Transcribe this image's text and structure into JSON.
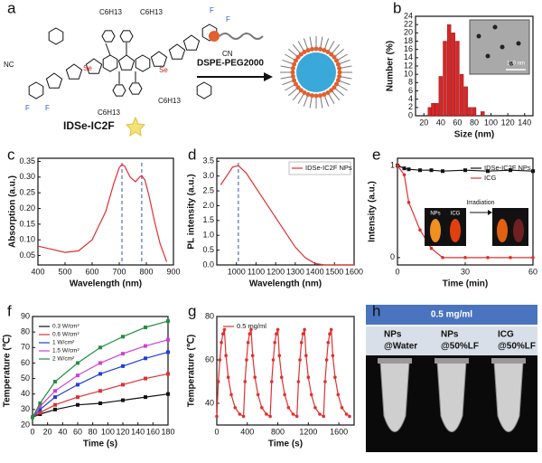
{
  "panel_labels": [
    "a",
    "b",
    "c",
    "d",
    "e",
    "f",
    "g",
    "h"
  ],
  "panel_a": {
    "molecule": "IDSe-IC2F",
    "reagent": "DSPE-PEG2000",
    "hexyl": "C6H13",
    "selenium": "Se",
    "fluorine": "F",
    "cyano": "CN",
    "cyano_left": "NC"
  },
  "panel_h": {
    "header": "0.5 mg/ml",
    "columns": [
      [
        "NPs",
        "@Water"
      ],
      [
        "NPs",
        "@50%LF"
      ],
      [
        "ICG",
        "@50%LF"
      ]
    ]
  },
  "chart_data": [
    {
      "type": "bar",
      "x_label": "Size (nm)",
      "y_label": "Number (%)",
      "x": [
        27,
        31,
        35,
        40,
        45,
        50,
        55,
        60,
        65,
        70,
        75,
        80,
        90
      ],
      "values": [
        2,
        3,
        3,
        9.5,
        18,
        22,
        20,
        18,
        10,
        7,
        2,
        2,
        1
      ],
      "color": "#d62728",
      "xlim": [
        10,
        150
      ],
      "ylim": [
        0,
        24
      ],
      "xticks": [
        20,
        40,
        60,
        80,
        100,
        120,
        140
      ],
      "yticks": [
        0,
        2,
        4,
        6,
        8,
        10,
        12,
        14,
        16,
        18,
        20,
        22,
        24
      ],
      "inset": {
        "scale_bar": "100 nm"
      }
    },
    {
      "type": "line",
      "x_label": "Wavelength (nm)",
      "y_label": "Absorption (a.u.)",
      "x": [
        400,
        450,
        500,
        550,
        600,
        650,
        680,
        700,
        710,
        720,
        740,
        760,
        775,
        783,
        795,
        810,
        830,
        850,
        875
      ],
      "series": [
        {
          "color": "#e03030",
          "values": [
            0.08,
            0.07,
            0.06,
            0.065,
            0.1,
            0.19,
            0.28,
            0.33,
            0.34,
            0.335,
            0.3,
            0.285,
            0.3,
            0.305,
            0.29,
            0.24,
            0.16,
            0.09,
            0.03
          ]
        }
      ],
      "reference_lines": [
        710,
        783
      ],
      "reference_color": "#3050c0",
      "xlim": [
        400,
        900
      ],
      "ylim": [
        0.02,
        0.36
      ],
      "xticks": [
        400,
        500,
        600,
        700,
        800,
        900
      ],
      "yticks": [
        {
          "value": 0.05,
          "label": "0.05"
        },
        {
          "value": 0.1,
          "label": "0.10"
        },
        {
          "value": 0.15,
          "label": "0.15"
        },
        {
          "value": 0.2,
          "label": "0.20"
        },
        {
          "value": 0.25,
          "label": "0.25"
        },
        {
          "value": 0.3,
          "label": "0.30"
        },
        {
          "value": 0.35,
          "label": "0.35"
        }
      ]
    },
    {
      "type": "line",
      "x_label": "Wavelength (nm)",
      "y_label": "PL intensity (a.u.)",
      "x": [
        920,
        950,
        980,
        1010,
        1050,
        1100,
        1150,
        1200,
        1250,
        1300,
        1350,
        1400,
        1450,
        1500,
        1600
      ],
      "series": [
        {
          "name": "IDSe-IC2F NPs",
          "color": "#e03030",
          "values": [
            2.7,
            3.0,
            3.3,
            3.35,
            3.1,
            2.6,
            2.1,
            1.6,
            1.1,
            0.6,
            0.25,
            0.05,
            0,
            0,
            0
          ]
        }
      ],
      "legend": "upper right",
      "reference_lines": [
        1010
      ],
      "reference_color": "#3050c0",
      "xlim": [
        900,
        1600
      ],
      "ylim": [
        0,
        3.6
      ],
      "xticks": [
        1000,
        1100,
        1200,
        1300,
        1400,
        1500,
        1600
      ],
      "yticks": [
        {
          "value": 0,
          "label": "0.0"
        },
        {
          "value": 0.5,
          "label": "0.5"
        },
        {
          "value": 1,
          "label": "1.0"
        },
        {
          "value": 1.5,
          "label": "1.5"
        },
        {
          "value": 2,
          "label": "2.0"
        },
        {
          "value": 2.5,
          "label": "2.5"
        },
        {
          "value": 3,
          "label": "3.0"
        },
        {
          "value": 3.5,
          "label": "3.5"
        }
      ]
    },
    {
      "type": "line",
      "x_label": "Time (min)",
      "y_label": "Intensity (a.u.)",
      "x": [
        0,
        3,
        5,
        10,
        15,
        20,
        30,
        40,
        50,
        60
      ],
      "series": [
        {
          "name": "IDSe-IC2F NPs",
          "color": "#111111",
          "marker": "square",
          "values": [
            1.0,
            0.97,
            0.96,
            0.95,
            0.95,
            0.94,
            0.95,
            0.94,
            0.95,
            0.94
          ]
        },
        {
          "name": "ICG",
          "color": "#e03030",
          "marker": "circle",
          "values": [
            1.0,
            0.9,
            0.6,
            0.3,
            0.1,
            0,
            0,
            0,
            0,
            0
          ]
        }
      ],
      "legend": "upper right",
      "xlim": [
        0,
        60
      ],
      "ylim": [
        -0.08,
        1.08
      ],
      "xticks": [
        0,
        30,
        60
      ],
      "yticks": [
        0,
        1
      ],
      "inset": {
        "labels": [
          "NPs",
          "ICG"
        ],
        "arrow_label": "Irradiation"
      }
    },
    {
      "type": "line",
      "x_label": "Time (s)",
      "y_label": "Temperature (℃)",
      "x": [
        0,
        10,
        30,
        60,
        90,
        120,
        150,
        180
      ],
      "series": [
        {
          "name": "0.3 W/cm²",
          "color": "#111111",
          "marker": "square",
          "values": [
            25,
            27,
            30,
            33,
            34,
            36,
            38,
            40
          ]
        },
        {
          "name": "0.6 W/cm²",
          "color": "#e03030",
          "marker": "square",
          "values": [
            25,
            28,
            33,
            38,
            42,
            46,
            50,
            53
          ]
        },
        {
          "name": "1 W/cm²",
          "color": "#2040d0",
          "marker": "square",
          "values": [
            25,
            30,
            38,
            46,
            53,
            58,
            63,
            67
          ]
        },
        {
          "name": "1.5 W/cm²",
          "color": "#d040d0",
          "marker": "square",
          "values": [
            25,
            32,
            42,
            52,
            60,
            66,
            71,
            75
          ]
        },
        {
          "name": "2 W/cm²",
          "color": "#209040",
          "marker": "square",
          "values": [
            25,
            34,
            48,
            60,
            70,
            77,
            83,
            87
          ]
        }
      ],
      "legend": "upper left",
      "xlim": [
        0,
        180
      ],
      "ylim": [
        20,
        90
      ],
      "xticks": [
        0,
        20,
        40,
        60,
        80,
        100,
        120,
        140,
        160,
        180
      ],
      "yticks": [
        20,
        30,
        40,
        50,
        60,
        70,
        80,
        90
      ]
    },
    {
      "type": "line",
      "x_label": "Time (s)",
      "y_label": "Temperature (℃)",
      "x": [
        0,
        20,
        40,
        60,
        80,
        100,
        120,
        150,
        190,
        240,
        300,
        350,
        370,
        390,
        410,
        430,
        450,
        470,
        500,
        540,
        590,
        650,
        700,
        720,
        740,
        760,
        780,
        800,
        820,
        850,
        890,
        940,
        1000,
        1050,
        1070,
        1090,
        1110,
        1130,
        1150,
        1170,
        1200,
        1240,
        1290,
        1350,
        1400,
        1420,
        1440,
        1460,
        1480,
        1500,
        1520,
        1550,
        1590,
        1640,
        1700,
        1740
      ],
      "series": [
        {
          "name": "0.5 mg/ml",
          "color": "#e03030",
          "marker": "circle",
          "values": [
            34,
            50,
            60,
            68,
            72,
            74,
            62,
            52,
            44,
            38,
            35,
            34,
            50,
            60,
            68,
            72,
            74,
            62,
            52,
            44,
            38,
            35,
            34,
            50,
            60,
            68,
            72,
            74,
            62,
            52,
            44,
            38,
            35,
            34,
            50,
            60,
            68,
            72,
            74,
            62,
            52,
            44,
            38,
            35,
            34,
            50,
            60,
            68,
            72,
            74,
            62,
            52,
            44,
            38,
            35,
            34
          ]
        }
      ],
      "legend": "upper left",
      "xlim": [
        0,
        1800
      ],
      "ylim": [
        30,
        80
      ],
      "xticks": [
        0,
        400,
        800,
        1200,
        1600
      ],
      "yticks": [
        40,
        60,
        80
      ]
    }
  ]
}
